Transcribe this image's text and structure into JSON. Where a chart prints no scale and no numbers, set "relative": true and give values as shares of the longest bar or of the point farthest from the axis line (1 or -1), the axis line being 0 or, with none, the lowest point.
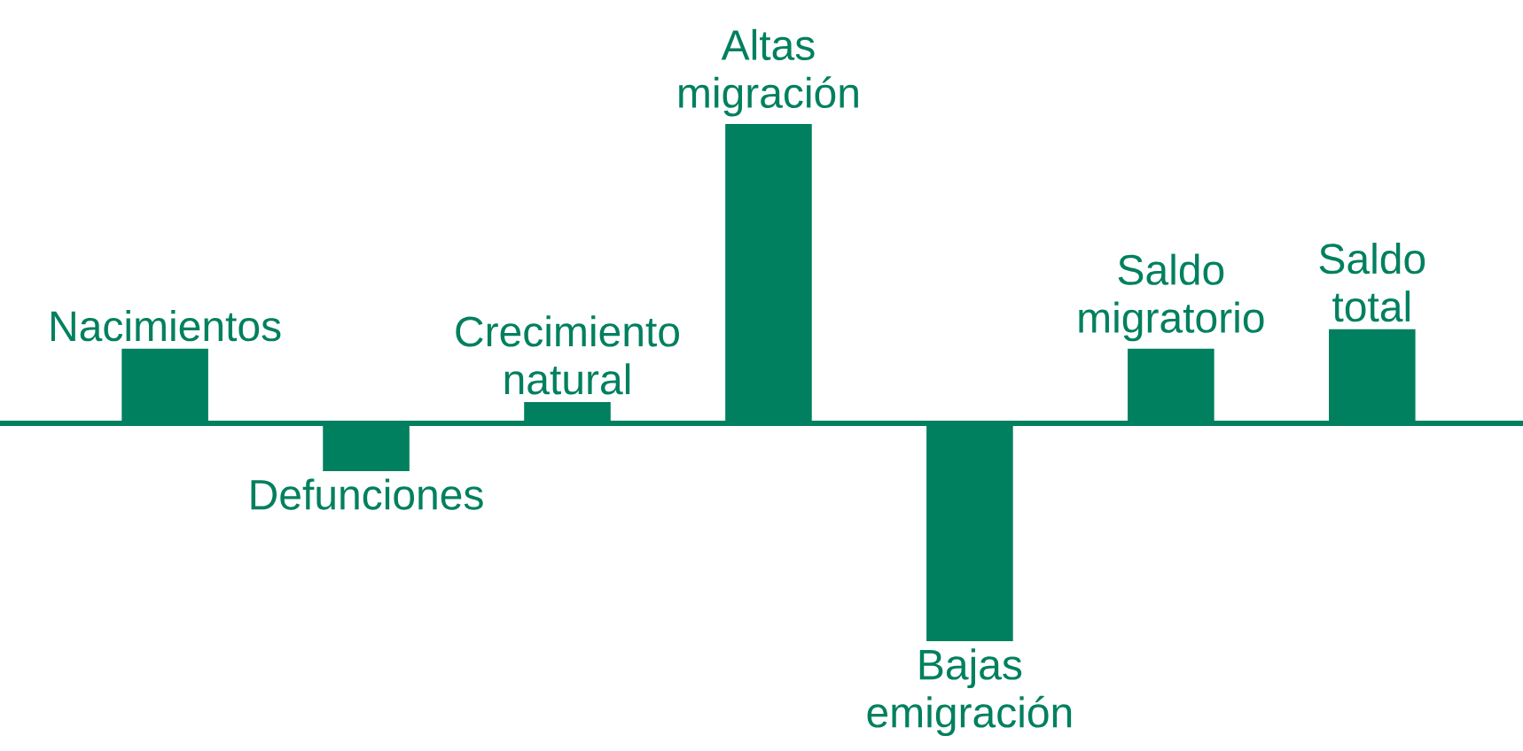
{
  "chart_data": {
    "type": "bar",
    "relative": true,
    "color": "#00805f",
    "categories": [
      "Nacimientos",
      "Defunciones",
      "Crecimiento natural",
      "Altas migración",
      "Bajas emigración",
      "Saldo migratorio",
      "Saldo total"
    ],
    "values": [
      0.249,
      -0.16,
      0.071,
      1,
      -0.728,
      0.249,
      0.314
    ]
  }
}
